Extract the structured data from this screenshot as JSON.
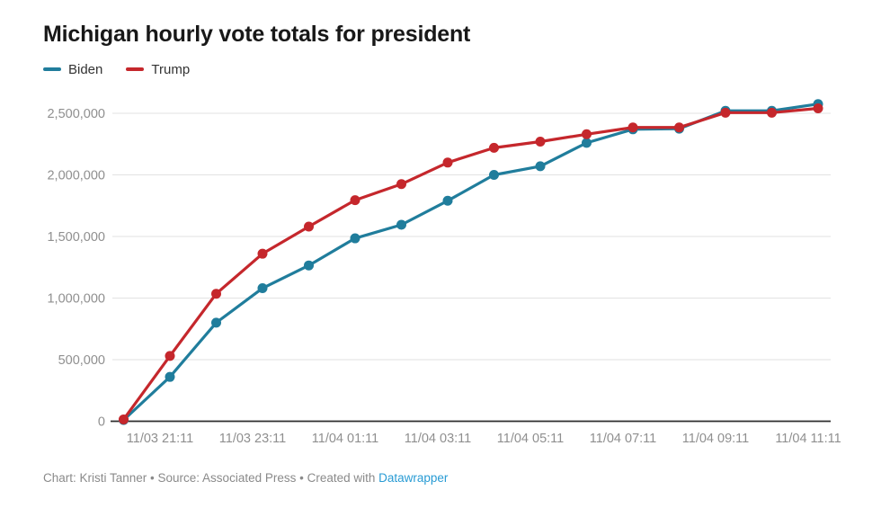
{
  "header": {
    "title": "Michigan hourly vote totals for president"
  },
  "footer": {
    "credit_text": "Chart: Kristi Tanner • Source: Associated Press • Created with ",
    "link_label": "Datawrapper"
  },
  "colors": {
    "biden": "#207d9c",
    "trump": "#c5272c",
    "gridline": "#e2e2e2",
    "axis_baseline": "#2e2e2e",
    "axis_label": "#8f8f8f",
    "title_text": "#181818",
    "legend_text": "#333333",
    "footer_text": "#8a8a8a",
    "footer_link": "#289bd4"
  },
  "chart_data": {
    "type": "line",
    "title": "Michigan hourly vote totals for president",
    "xlabel": "",
    "ylabel": "",
    "ylim": [
      0,
      2500000
    ],
    "ytick_step": 500000,
    "grid": "horizontal",
    "legend_position": "top-left",
    "x": [
      "11/03 20:11",
      "11/03 21:11",
      "11/03 22:11",
      "11/03 23:11",
      "11/04 00:11",
      "11/04 01:11",
      "11/04 02:11",
      "11/04 03:11",
      "11/04 04:11",
      "11/04 05:11",
      "11/04 06:11",
      "11/04 07:11",
      "11/04 08:11",
      "11/04 09:11",
      "11/04 10:11",
      "11/04 11:11"
    ],
    "x_tick_indices": [
      1,
      3,
      5,
      7,
      9,
      11,
      13,
      15
    ],
    "x_tick_labels": [
      "11/03 21:11",
      "11/03 23:11",
      "11/04 01:11",
      "11/04 03:11",
      "11/04 05:11",
      "11/04 07:11",
      "11/04 09:11",
      "11/04 11:11"
    ],
    "series": [
      {
        "name": "Biden",
        "color": "#207d9c",
        "values": [
          10000,
          360000,
          800000,
          1080000,
          1265000,
          1485000,
          1595000,
          1790000,
          2000000,
          2070000,
          2260000,
          2370000,
          2375000,
          2520000,
          2520000,
          2575000
        ]
      },
      {
        "name": "Trump",
        "color": "#c5272c",
        "values": [
          15000,
          530000,
          1035000,
          1360000,
          1580000,
          1795000,
          1925000,
          2100000,
          2220000,
          2270000,
          2330000,
          2385000,
          2385000,
          2505000,
          2505000,
          2540000
        ]
      }
    ]
  }
}
